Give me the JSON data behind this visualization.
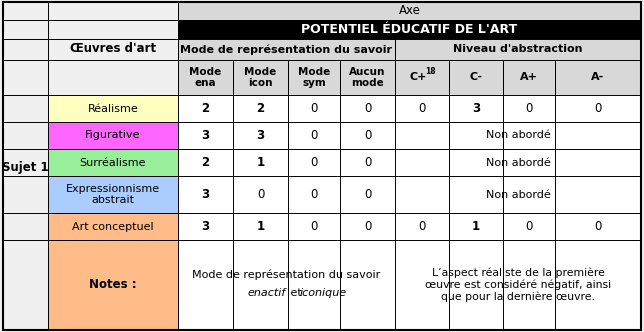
{
  "title_axe": "Axe",
  "title_potentiel": "POTENTIEL ÉDUCATIF DE L'ART",
  "col_group1": "Mode de représentation du savoir",
  "col_group2": "Niveau d'abstraction",
  "col_headers_left": [
    "Mode\nena",
    "Mode\nicon",
    "Mode\nsym",
    "Aucun\nmode"
  ],
  "col_headers_right": [
    "C+",
    "18",
    "C-",
    "A+",
    "A-"
  ],
  "row_label_col": "Œuvres d'art",
  "row_left": "Sujet 1",
  "rows": [
    {
      "label": "Réalisme",
      "color": "#FFFFC0",
      "data": [
        "2",
        "2",
        "0",
        "0"
      ],
      "abstraction": [
        "0",
        "3",
        "0",
        "0"
      ]
    },
    {
      "label": "Figurative",
      "color": "#FF66FF",
      "data": [
        "3",
        "3",
        "0",
        "0"
      ],
      "abstraction": "Non abordé"
    },
    {
      "label": "Surréalisme",
      "color": "#99EE99",
      "data": [
        "2",
        "1",
        "0",
        "0"
      ],
      "abstraction": "Non abordé"
    },
    {
      "label": "Expressionnisme\nabstrait",
      "color": "#AACCFF",
      "data": [
        "3",
        "0",
        "0",
        "0"
      ],
      "abstraction": "Non abordé"
    },
    {
      "label": "Art conceptuel",
      "color": "#FFBB88",
      "data": [
        "3",
        "1",
        "0",
        "0"
      ],
      "abstraction": [
        "0",
        "1",
        "0",
        "0"
      ]
    }
  ],
  "notes_label": "Notes :",
  "notes_left_line1": "Mode de représentation du savoir",
  "notes_left_line2a": "enactif",
  "notes_left_line2b": " et ",
  "notes_left_line2c": "iconique",
  "notes_right": "L’aspect réaliste de la première\nœuvre est considéré négatif, ainsi\nque pour la dernière œuvre.",
  "background_color": "#f0f0f0",
  "header_black_bg": "#000000",
  "header_black_text": "#ffffff",
  "gray_bg": "#d8d8d8",
  "border_color": "#000000"
}
